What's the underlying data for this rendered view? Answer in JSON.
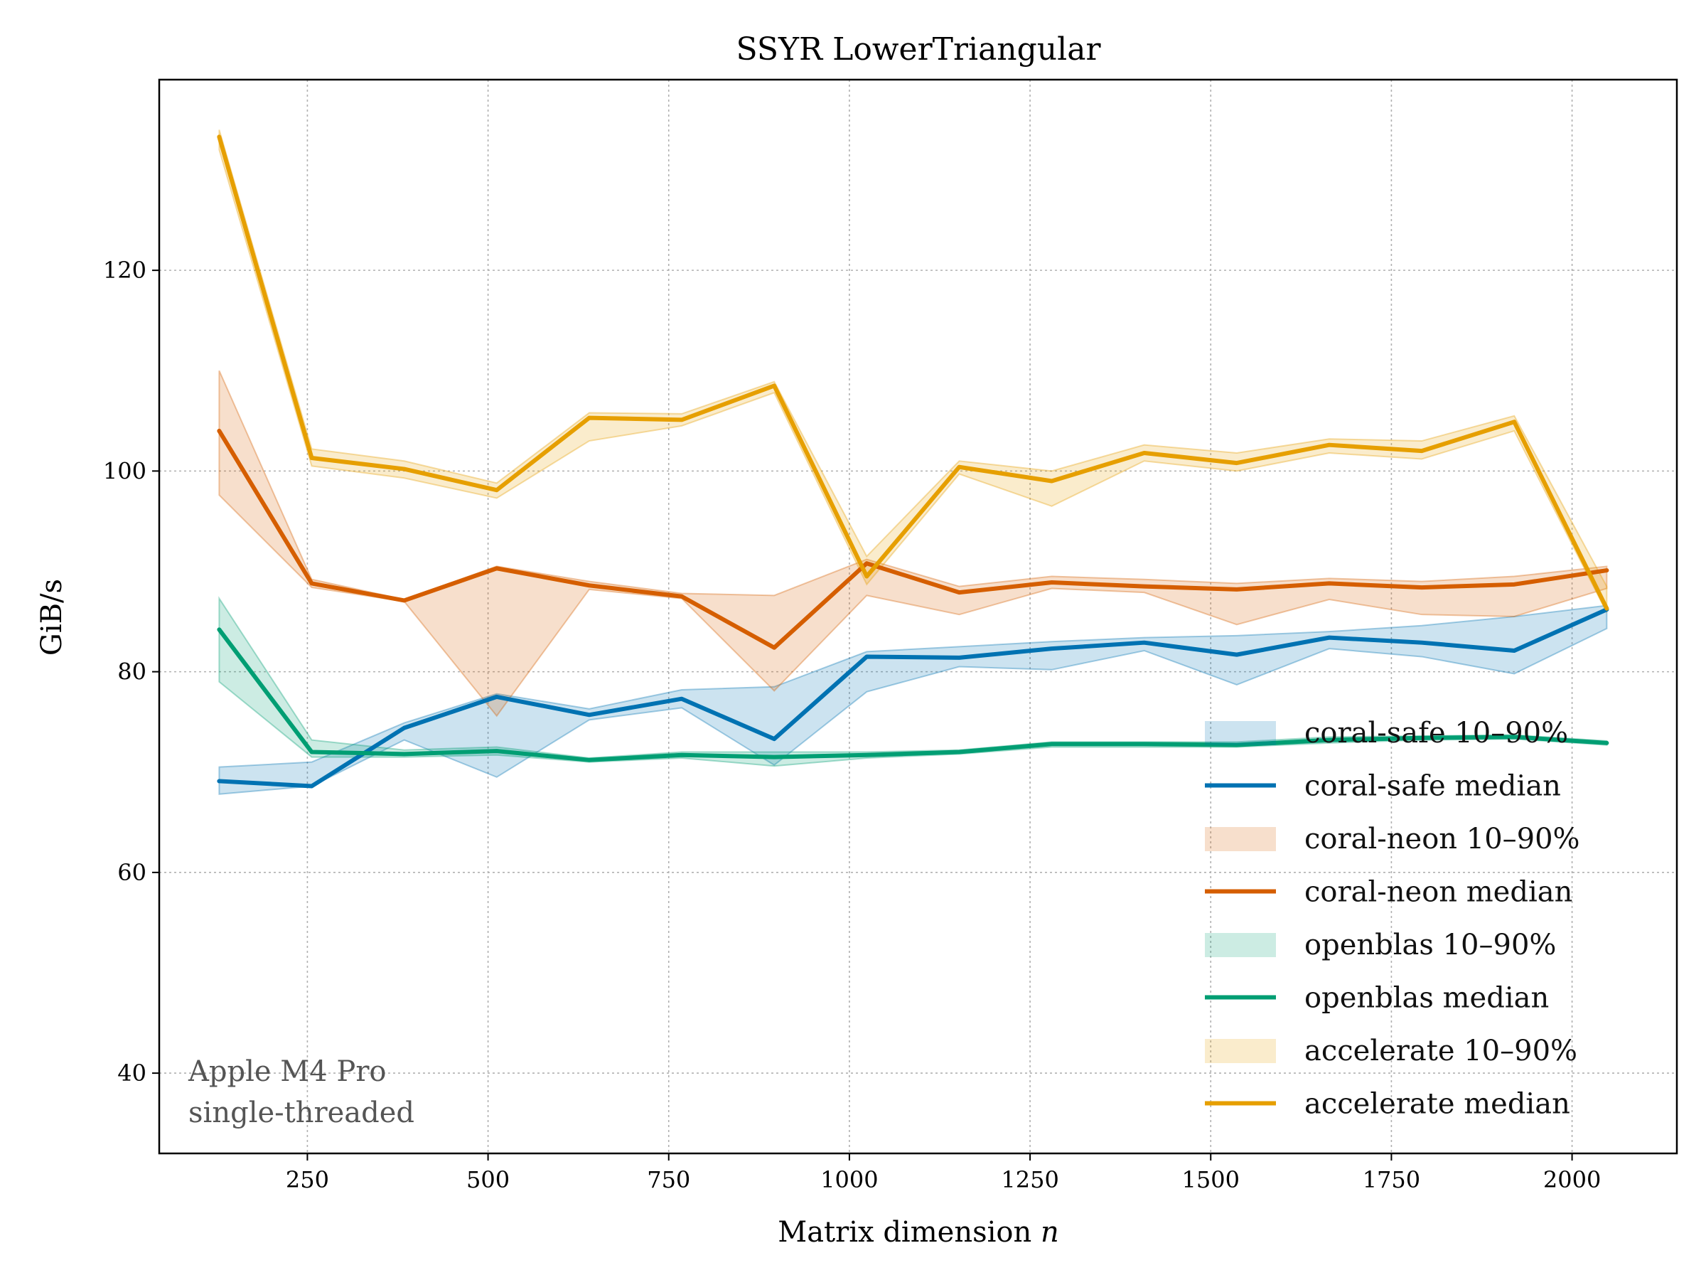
{
  "chart_data": {
    "type": "line",
    "title": "SSYR LowerTriangular",
    "xlabel": "Matrix dimension",
    "xlabel_var": "n",
    "ylabel": "GiB/s",
    "xlim": [
      45,
      2145
    ],
    "ylim": [
      32,
      139
    ],
    "xticks": [
      250,
      500,
      750,
      1000,
      1250,
      1500,
      1750,
      2000
    ],
    "yticks": [
      40,
      60,
      80,
      100,
      120
    ],
    "grid": true,
    "legend_position": "lower-right",
    "x": [
      128,
      256,
      384,
      512,
      640,
      768,
      896,
      1024,
      1152,
      1280,
      1408,
      1536,
      1664,
      1792,
      1920,
      2048
    ],
    "series": [
      {
        "name": "coral-safe",
        "color": "#0072b2",
        "median": [
          69.1,
          68.6,
          74.4,
          77.5,
          75.7,
          77.3,
          73.3,
          81.5,
          81.4,
          82.3,
          82.9,
          81.7,
          83.4,
          82.9,
          82.1,
          86.2
        ],
        "p10": [
          67.8,
          68.6,
          73.2,
          69.5,
          75.2,
          76.4,
          70.7,
          78.0,
          80.5,
          80.2,
          82.1,
          78.7,
          82.3,
          81.5,
          79.8,
          84.3
        ],
        "p90": [
          70.5,
          71.0,
          74.9,
          77.8,
          76.3,
          78.2,
          78.5,
          82.0,
          82.5,
          83.0,
          83.4,
          83.6,
          84.0,
          84.6,
          85.5,
          86.6
        ]
      },
      {
        "name": "coral-neon",
        "color": "#d55e00",
        "median": [
          104.0,
          88.8,
          87.1,
          90.3,
          88.6,
          87.5,
          82.4,
          90.8,
          87.9,
          88.9,
          88.5,
          88.2,
          88.8,
          88.4,
          88.7,
          90.1
        ],
        "p10": [
          97.6,
          88.4,
          87.0,
          75.6,
          88.2,
          87.3,
          78.1,
          87.6,
          85.7,
          88.3,
          87.9,
          84.7,
          87.2,
          85.7,
          85.5,
          88.3
        ],
        "p90": [
          110.0,
          89.2,
          87.2,
          90.5,
          89.0,
          87.8,
          87.6,
          91.2,
          88.5,
          89.5,
          89.2,
          88.8,
          89.3,
          89.0,
          89.5,
          90.5
        ]
      },
      {
        "name": "openblas",
        "color": "#009e73",
        "median": [
          84.2,
          72.0,
          71.8,
          72.1,
          71.2,
          71.7,
          71.5,
          71.7,
          72.0,
          72.8,
          72.8,
          72.7,
          73.2,
          73.4,
          73.5,
          72.9
        ],
        "p10": [
          79.0,
          71.5,
          71.5,
          71.7,
          71.0,
          71.4,
          70.6,
          71.4,
          71.8,
          72.5,
          72.5,
          72.5,
          72.9,
          73.2,
          73.3,
          72.7
        ],
        "p90": [
          87.3,
          73.2,
          72.2,
          72.5,
          71.4,
          72.0,
          72.0,
          72.0,
          72.2,
          73.0,
          73.0,
          73.0,
          73.5,
          73.6,
          73.7,
          73.1
        ]
      },
      {
        "name": "accelerate",
        "color": "#e69f00",
        "median": [
          133.3,
          101.3,
          100.2,
          98.1,
          105.3,
          105.1,
          108.5,
          89.5,
          100.4,
          99.0,
          101.8,
          100.8,
          102.6,
          102.0,
          104.9,
          86.3
        ],
        "p10": [
          132.0,
          100.5,
          99.3,
          97.3,
          103.0,
          104.5,
          107.8,
          88.7,
          99.7,
          96.5,
          101.0,
          100.0,
          101.8,
          101.2,
          104.0,
          85.9
        ],
        "p90": [
          134.0,
          102.2,
          101.0,
          98.8,
          105.8,
          105.7,
          108.9,
          91.5,
          101.0,
          100.0,
          102.6,
          101.8,
          103.2,
          103.0,
          105.5,
          88.5
        ]
      }
    ],
    "legend": [
      {
        "label": "coral-safe 10–90%",
        "kind": "band",
        "series": 0
      },
      {
        "label": "coral-safe median",
        "kind": "line",
        "series": 0
      },
      {
        "label": "coral-neon 10–90%",
        "kind": "band",
        "series": 1
      },
      {
        "label": "coral-neon median",
        "kind": "line",
        "series": 1
      },
      {
        "label": "openblas 10–90%",
        "kind": "band",
        "series": 2
      },
      {
        "label": "openblas median",
        "kind": "line",
        "series": 2
      },
      {
        "label": "accelerate 10–90%",
        "kind": "band",
        "series": 3
      },
      {
        "label": "accelerate median",
        "kind": "line",
        "series": 3
      }
    ],
    "annotation": [
      "Apple M4 Pro",
      "single-threaded"
    ]
  }
}
